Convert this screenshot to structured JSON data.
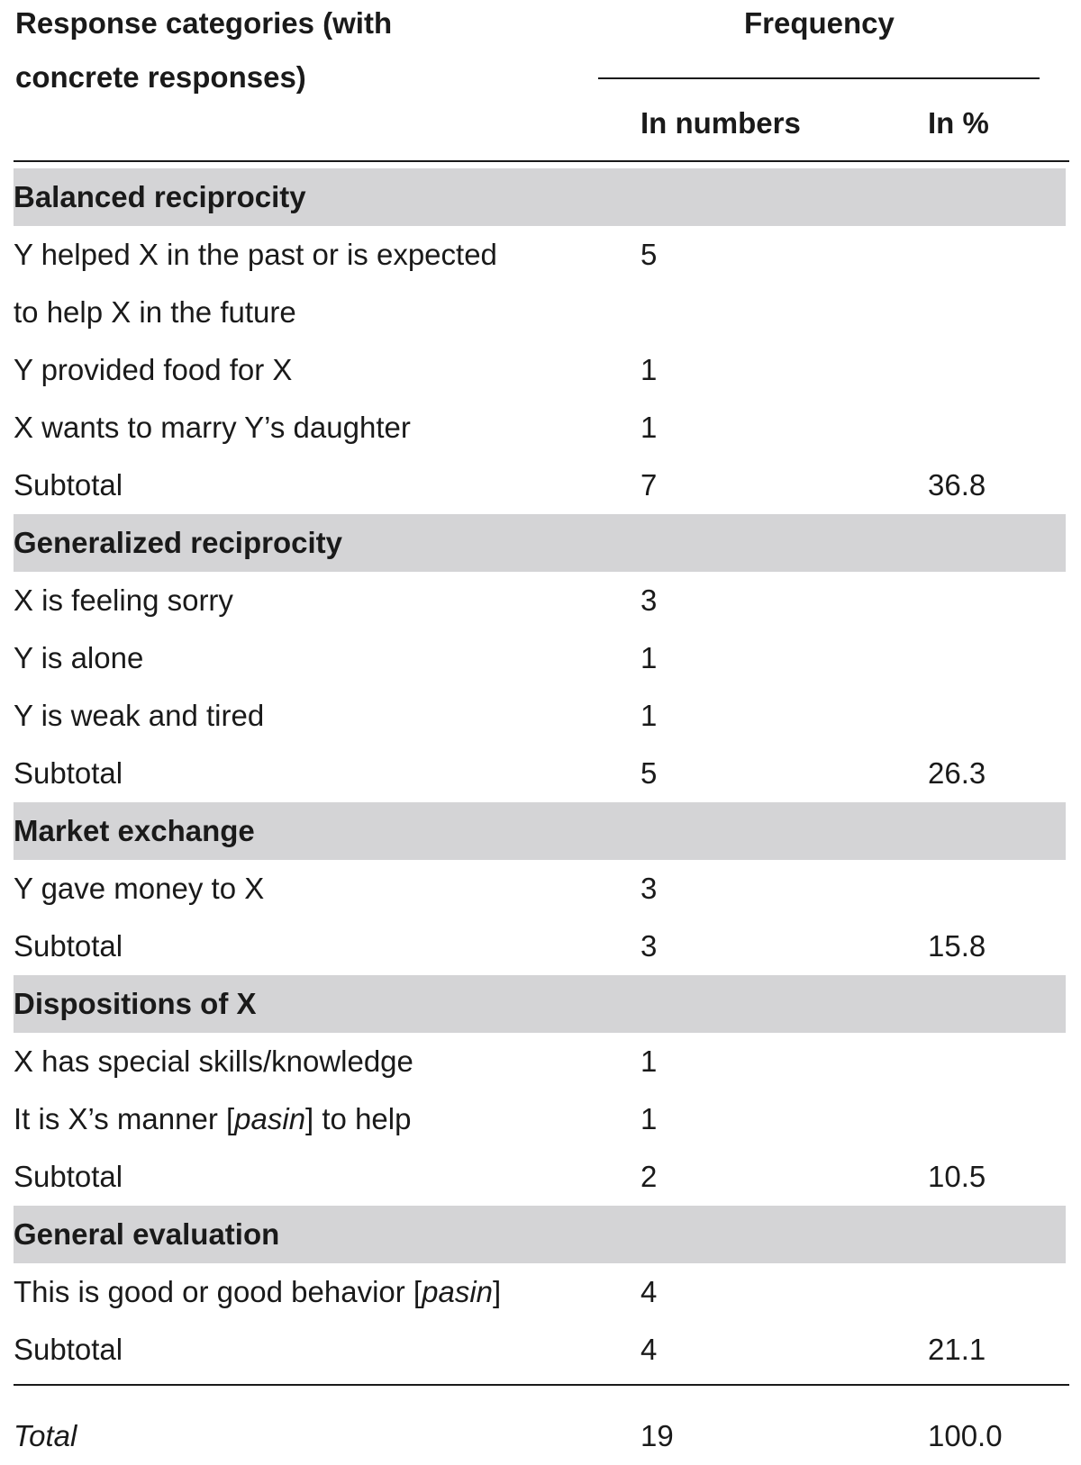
{
  "header": {
    "col1_line1": "Response categories (with",
    "col1_line2": "concrete responses)",
    "frequency": "Frequency",
    "in_numbers": "In numbers",
    "in_pct": "In %"
  },
  "rows": [
    {
      "type": "category",
      "label": "Balanced reciprocity"
    },
    {
      "type": "item",
      "label": "Y helped X in the past or is expected",
      "num": "5"
    },
    {
      "type": "item",
      "label": "to help X in the future"
    },
    {
      "type": "item",
      "label": "Y provided food for X",
      "num": "1"
    },
    {
      "type": "item",
      "label": "X wants to marry Y’s daughter",
      "num": "1"
    },
    {
      "type": "subtotal",
      "label": "Subtotal",
      "num": "7",
      "pct": "36.8"
    },
    {
      "type": "category",
      "label": "Generalized reciprocity"
    },
    {
      "type": "item",
      "label": "X is feeling sorry",
      "num": "3"
    },
    {
      "type": "item",
      "label": "Y is alone",
      "num": "1"
    },
    {
      "type": "item",
      "label": "Y is weak and tired",
      "num": "1"
    },
    {
      "type": "subtotal",
      "label": "Subtotal",
      "num": "5",
      "pct": "26.3"
    },
    {
      "type": "category",
      "label": "Market exchange"
    },
    {
      "type": "item",
      "label": "Y gave money to X",
      "num": "3"
    },
    {
      "type": "subtotal",
      "label": "Subtotal",
      "num": "3",
      "pct": "15.8"
    },
    {
      "type": "category",
      "label": "Dispositions of X"
    },
    {
      "type": "item",
      "label": "X has special skills/knowledge",
      "num": "1"
    },
    {
      "type": "item",
      "label_parts": [
        "It is X’s manner [",
        "pasin",
        "] to help"
      ],
      "num": "1"
    },
    {
      "type": "subtotal",
      "label": "Subtotal",
      "num": "2",
      "pct": "10.5"
    },
    {
      "type": "category",
      "label": "General evaluation"
    },
    {
      "type": "item",
      "label_parts": [
        "This is good or good behavior [",
        "pasin",
        "]"
      ],
      "num": "4"
    },
    {
      "type": "subtotal",
      "label": "Subtotal",
      "num": "4",
      "pct": "21.1"
    }
  ],
  "total": {
    "label": "Total",
    "num": "19",
    "pct": "100.0"
  }
}
